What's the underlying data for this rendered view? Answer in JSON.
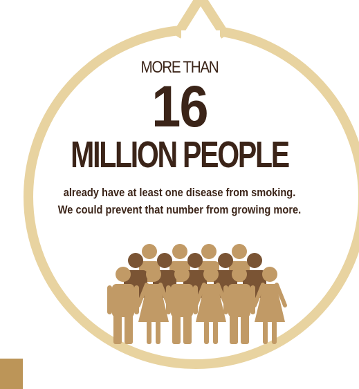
{
  "infographic": {
    "lead": "MORE THAN",
    "number": "16",
    "headline": "MILLION PEOPLE",
    "body": [
      "already have at least one disease from smoking.",
      "We could prevent that number from growing more."
    ]
  },
  "colors": {
    "ring": "#e8d3a0",
    "text": "#3b2418",
    "figure_front": "#c19a66",
    "figure_back": "#7a5434",
    "corner_square": "#bc9558"
  },
  "icons": {
    "figures": "people-group-icon"
  }
}
